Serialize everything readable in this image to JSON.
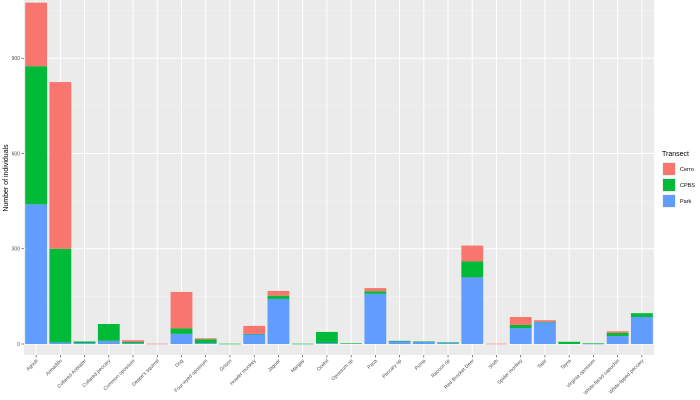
{
  "chart_data": {
    "type": "bar",
    "stacked": true,
    "title": "",
    "xlabel": "",
    "ylabel": "Number of individuals",
    "ylim": [
      0,
      1080
    ],
    "yticks": [
      0,
      300,
      600,
      900
    ],
    "grid": true,
    "legend": {
      "title": "Transect",
      "placement": "right"
    },
    "categories": [
      "Agouti",
      "Armadillo",
      "Collared Anteater",
      "Collared peccary",
      "Common opossum",
      "Deppe's squirrel",
      "Dog",
      "Four-eyed opossum",
      "Grison",
      "Howler monkey",
      "Jaguar",
      "Margay",
      "Ocelot",
      "Opossum sp",
      "Paca",
      "Peccary sp",
      "Puma",
      "Racoon sp",
      "Red Brocket Deer",
      "Sloth",
      "Spider monkey",
      "Tapir",
      "Tayra",
      "Virginia opossum",
      "White-faced capuchin",
      "White-lipped peccary"
    ],
    "series": [
      {
        "name": "Cerro",
        "color": "#F8766D",
        "values": [
          200,
          525,
          0,
          0,
          5,
          1,
          115,
          3,
          0,
          25,
          15,
          0,
          0,
          0,
          10,
          0,
          0,
          0,
          50,
          1,
          25,
          5,
          0,
          0,
          5,
          0
        ]
      },
      {
        "name": "CPBS",
        "color": "#00BA38",
        "values": [
          435,
          295,
          5,
          53,
          5,
          0,
          17,
          12,
          1,
          2,
          10,
          1,
          35,
          2,
          8,
          2,
          1,
          1,
          50,
          0,
          10,
          2,
          7,
          1,
          10,
          12
        ]
      },
      {
        "name": "Park",
        "color": "#619CFF",
        "values": [
          440,
          5,
          3,
          10,
          2,
          0,
          32,
          3,
          0,
          30,
          142,
          0,
          3,
          0,
          158,
          8,
          7,
          4,
          210,
          0,
          50,
          68,
          0,
          1,
          25,
          85
        ]
      }
    ]
  }
}
